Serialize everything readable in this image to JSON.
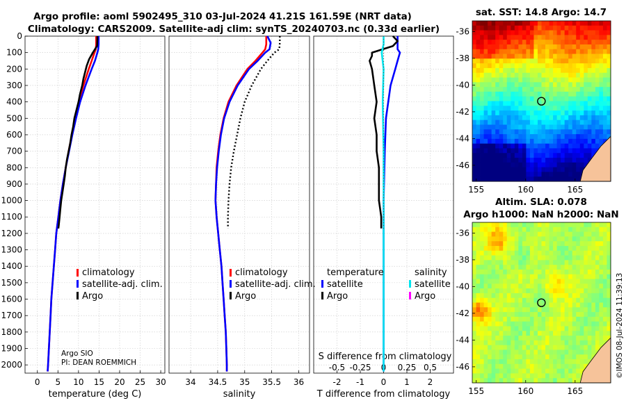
{
  "figure": {
    "title_line1": "Argo profile: aoml 5902495_310 03-Jul-2024 41.21S 161.59E (NRT data)",
    "title_line2": "Climatology: CARS2009. Satellite-adj clim: synTS_20240703.nc (0.33d earlier)",
    "credit_line1": "Argo SIO",
    "credit_line2": "PI: DEAN ROEMMICH",
    "watermark": "©IMOS 08-Jul-2024 11:39:13"
  },
  "colors": {
    "climatology": "#ff0000",
    "satellite": "#0000ff",
    "argo": "#000000",
    "salinity_satellite": "#00e5ee",
    "salinity_argo": "#ff00ff",
    "land": "#f6c39a"
  },
  "legends": {
    "temperature": [
      "climatology",
      "satellite-adj. clim.",
      "Argo"
    ],
    "salinity": [
      "climatology",
      "satellite-adj. clim.",
      "Argo"
    ],
    "difference_header_t": "temperature",
    "difference_header_s": "salinity",
    "difference_t": [
      "satellite",
      "Argo"
    ],
    "difference_s": [
      "satellite",
      "Argo"
    ]
  },
  "maps": {
    "sst_title": "sat. SST: 14.8 Argo: 14.7",
    "sla_title_line1": "Altim. SLA: 0.078",
    "sla_title_line2": "Argo h1000: NaN h2000: NaN",
    "lon_ticks": [
      "155",
      "160",
      "165"
    ],
    "lat_ticks": [
      "-36",
      "-38",
      "-40",
      "-42",
      "-44",
      "-46"
    ],
    "lon_range": [
      154.6,
      168.6
    ],
    "lat_range": [
      -47.2,
      -35.2
    ],
    "argo_position": [
      161.59,
      -41.21
    ]
  },
  "chart_data": [
    {
      "type": "line",
      "title": "",
      "xlabel": "temperature (deg C)",
      "ylabel": "",
      "xlim": [
        -3,
        31
      ],
      "ylim": [
        2050,
        0
      ],
      "x_ticks": [
        0,
        5,
        10,
        15,
        20,
        25,
        30
      ],
      "x_tick_labels": [
        "0",
        "5",
        "10",
        "15",
        "20",
        "25",
        "30"
      ],
      "y_ticks": [
        0,
        100,
        200,
        300,
        400,
        500,
        600,
        700,
        800,
        900,
        1000,
        1100,
        1200,
        1300,
        1400,
        1500,
        1600,
        1700,
        1800,
        1900,
        2000
      ],
      "y_tick_labels": [
        "0",
        "100",
        "200",
        "300",
        "400",
        "500",
        "600",
        "700",
        "800",
        "900",
        "1000",
        "1100",
        "1200",
        "1300",
        "1400",
        "1500",
        "1600",
        "1700",
        "1800",
        "1900",
        "2000"
      ],
      "series": [
        {
          "name": "climatology",
          "depth": [
            0,
            50,
            80,
            100,
            150,
            200,
            300,
            400,
            500,
            600,
            700,
            800,
            900,
            1000,
            1100,
            1200,
            1300,
            1400,
            1500,
            1600,
            1700,
            1800,
            1900,
            2000,
            2040
          ],
          "values": [
            14.3,
            14.3,
            14.2,
            13.9,
            13.2,
            12.5,
            11.2,
            10.1,
            9.2,
            8.4,
            7.6,
            6.9,
            6.2,
            5.6,
            5.1,
            4.6,
            4.3,
            4.0,
            3.7,
            3.4,
            3.2,
            3.0,
            2.8,
            2.6,
            2.5
          ]
        },
        {
          "name": "satellite-adj. clim.",
          "depth": [
            0,
            50,
            80,
            100,
            150,
            200,
            300,
            400,
            500,
            600,
            700,
            800,
            900,
            1000,
            1100,
            1200,
            1300,
            1400,
            1500,
            1600,
            1700,
            1800,
            1900,
            2000,
            2040
          ],
          "values": [
            14.9,
            14.9,
            14.8,
            14.6,
            14.0,
            13.2,
            11.7,
            10.4,
            9.4,
            8.5,
            7.7,
            6.9,
            6.2,
            5.6,
            5.1,
            4.6,
            4.3,
            4.0,
            3.7,
            3.4,
            3.2,
            3.0,
            2.8,
            2.6,
            2.5
          ]
        },
        {
          "name": "Argo",
          "depth": [
            0,
            20,
            60,
            100,
            140,
            180,
            220,
            260,
            300,
            350,
            400,
            450,
            500,
            550,
            600,
            650,
            700,
            750,
            800,
            850,
            900,
            950,
            1000,
            1050,
            1100,
            1150,
            1170
          ],
          "values": [
            14.6,
            14.6,
            14.5,
            13.5,
            12.6,
            12.0,
            11.6,
            11.2,
            10.9,
            10.4,
            10.0,
            9.5,
            9.0,
            8.7,
            8.3,
            8.0,
            7.6,
            7.2,
            6.9,
            6.7,
            6.4,
            6.1,
            5.8,
            5.6,
            5.4,
            5.2,
            5.1
          ]
        }
      ]
    },
    {
      "type": "line",
      "title": "",
      "xlabel": "salinity",
      "ylabel": "",
      "xlim": [
        33.6,
        36.2
      ],
      "ylim": [
        2050,
        0
      ],
      "x_ticks": [
        34,
        34.5,
        35,
        35.5,
        36
      ],
      "x_tick_labels": [
        "34",
        "34.5",
        "35",
        "35.5",
        "36"
      ],
      "series": [
        {
          "name": "climatology",
          "depth": [
            0,
            50,
            80,
            100,
            150,
            200,
            300,
            400,
            500,
            600,
            700,
            800,
            900,
            1000,
            1100,
            1200,
            1300,
            1400,
            1500,
            1600,
            1700,
            1800,
            1900,
            2000,
            2040
          ],
          "values": [
            35.4,
            35.4,
            35.38,
            35.33,
            35.2,
            35.05,
            34.85,
            34.7,
            34.61,
            34.55,
            34.51,
            34.48,
            34.47,
            34.46,
            34.48,
            34.51,
            34.54,
            34.57,
            34.59,
            34.61,
            34.63,
            34.65,
            34.66,
            34.67,
            34.67
          ]
        },
        {
          "name": "satellite-adj. clim.",
          "depth": [
            0,
            40,
            80,
            100,
            150,
            200,
            300,
            400,
            500,
            600,
            700,
            800,
            900,
            1000,
            1100,
            1200,
            1300,
            1400,
            1500,
            1600,
            1700,
            1800,
            1900,
            2000,
            2040
          ],
          "values": [
            35.42,
            35.48,
            35.46,
            35.38,
            35.24,
            35.08,
            34.87,
            34.72,
            34.62,
            34.56,
            34.52,
            34.49,
            34.47,
            34.46,
            34.48,
            34.51,
            34.54,
            34.57,
            34.59,
            34.61,
            34.63,
            34.65,
            34.66,
            34.67,
            34.67
          ]
        },
        {
          "name": "Argo",
          "depth": [
            0,
            40,
            80,
            100,
            150,
            200,
            300,
            400,
            500,
            600,
            700,
            800,
            900,
            1000,
            1100,
            1170
          ],
          "values": [
            35.65,
            35.65,
            35.64,
            35.55,
            35.42,
            35.3,
            35.13,
            35.0,
            34.92,
            34.86,
            34.8,
            34.75,
            34.72,
            34.7,
            34.69,
            34.69
          ]
        }
      ]
    },
    {
      "type": "line",
      "title": "",
      "xlabel": "T difference from climatology",
      "ylabel": "",
      "xlim": [
        -3,
        3
      ],
      "ylim": [
        2050,
        0
      ],
      "x_ticks": [
        -2,
        -1,
        0,
        1,
        2
      ],
      "x_tick_labels": [
        "-2",
        "-1",
        "0",
        "1",
        "2"
      ],
      "secondary_axis_label": "S difference from climatology",
      "secondary_x_ticks": [
        -0.5,
        -0.25,
        0,
        0.25,
        0.5
      ],
      "secondary_x_tick_labels": [
        "-0.5",
        "-0.25",
        "0",
        "0.25",
        "0.5"
      ],
      "series": [
        {
          "name": "temperature satellite",
          "depth": [
            0,
            50,
            80,
            100,
            150,
            200,
            300,
            400,
            500,
            700,
            1000,
            1500,
            2000,
            2040
          ],
          "values": [
            0.6,
            0.6,
            0.6,
            0.7,
            0.6,
            0.5,
            0.3,
            0.2,
            0.1,
            0.05,
            0.0,
            0.0,
            0.0,
            0.0
          ]
        },
        {
          "name": "temperature Argo",
          "depth": [
            0,
            30,
            60,
            100,
            120,
            150,
            200,
            300,
            400,
            500,
            600,
            700,
            800,
            900,
            1000,
            1050,
            1100,
            1170
          ],
          "values": [
            0.4,
            0.6,
            0.4,
            -0.5,
            -0.5,
            -0.6,
            -0.5,
            -0.4,
            -0.3,
            -0.4,
            -0.3,
            -0.3,
            -0.2,
            -0.2,
            -0.2,
            -0.15,
            -0.1,
            -0.1
          ]
        },
        {
          "name": "salinity satellite",
          "depth": [
            0,
            50,
            100,
            200,
            400,
            700,
            1000,
            1500,
            2000,
            2040
          ],
          "values": [
            0.0,
            0.0,
            -0.02,
            0.0,
            -0.01,
            0.0,
            0.0,
            0.0,
            0.0,
            0.0
          ]
        },
        {
          "name": "salinity Argo",
          "depth": [
            0,
            100,
            200,
            400,
            700,
            1000,
            1170
          ],
          "values": [
            0.0,
            0.0,
            0.0,
            0.0,
            0.0,
            0.0,
            0.0
          ]
        }
      ]
    }
  ]
}
